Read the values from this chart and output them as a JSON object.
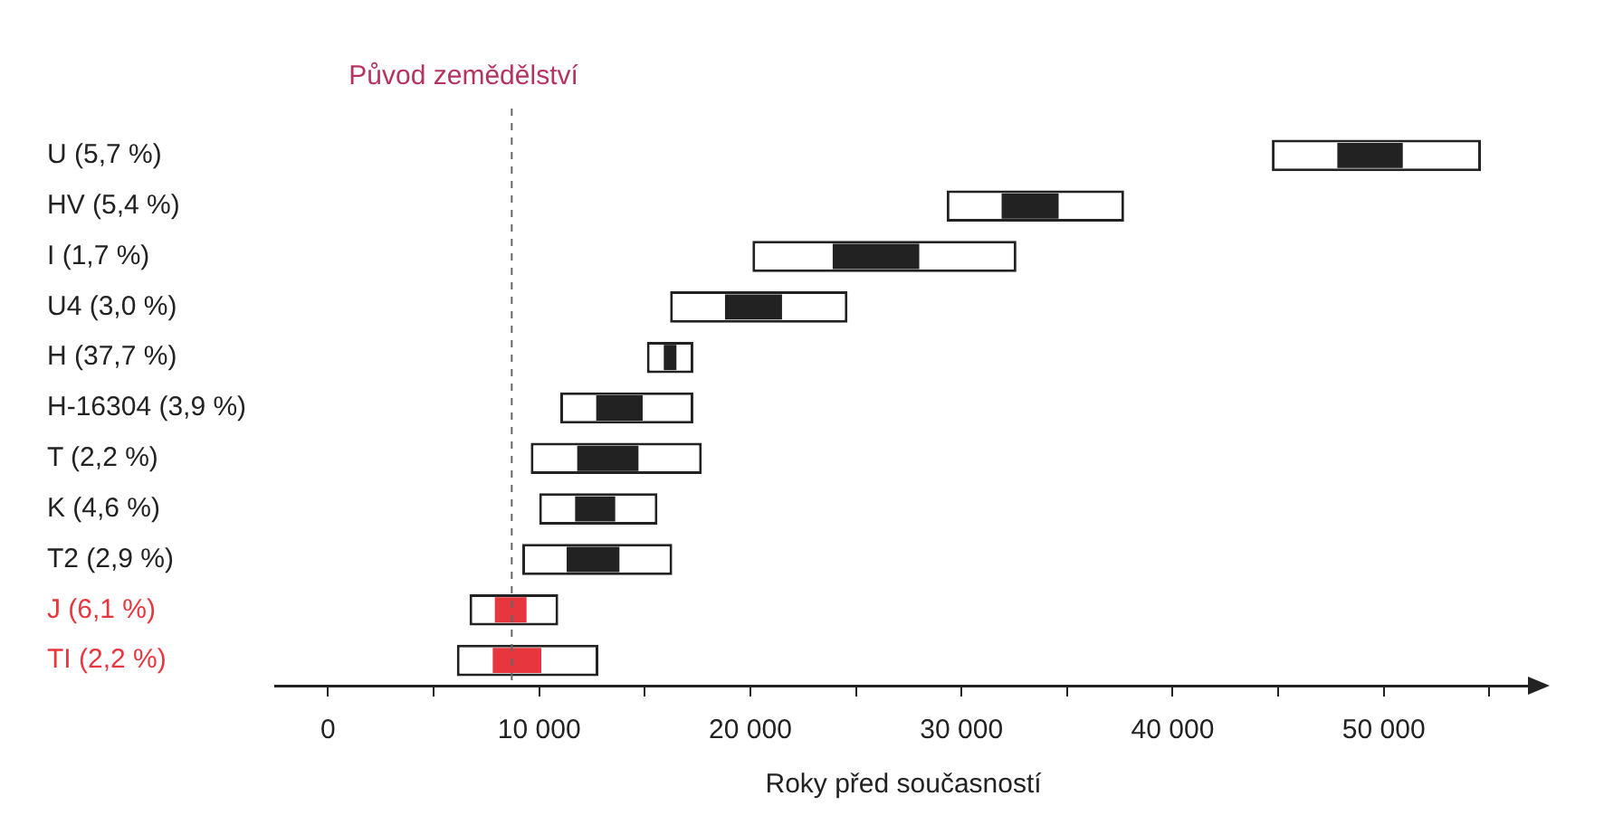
{
  "chart_data": {
    "type": "bar",
    "orientation": "horizontal",
    "xlabel": "Roky před současností",
    "categories": [
      "U (5,7 %)",
      "HV (5,4 %)",
      "I (1,7 %)",
      "U4 (3,0 %)",
      "H (37,7 %)",
      "H-16304 (3,9 %)",
      "T (2,2 %)",
      "K (4,6 %)",
      "T2 (2,9 %)",
      "J (6,1 %)",
      "TI (2,2 %)"
    ],
    "series": [
      {
        "color": "#ffffff",
        "base": [
          44700,
          29300,
          20100,
          16200,
          15100,
          11000,
          9600,
          10000,
          9200,
          6700,
          6100
        ],
        "values": [
          9900,
          8400,
          12500,
          8400,
          2200,
          6300,
          8100,
          5600,
          7100,
          4200,
          6700
        ]
      },
      {
        "colors": [
          "#222222",
          "#222222",
          "#222222",
          "#222222",
          "#222222",
          "#222222",
          "#222222",
          "#222222",
          "#222222",
          "#e8363f",
          "#e8363f"
        ],
        "base": [
          47800,
          31900,
          23900,
          18800,
          15900,
          12700,
          11800,
          11700,
          11300,
          7900,
          7800
        ],
        "values": [
          3100,
          2700,
          4100,
          2700,
          600,
          2200,
          2900,
          1900,
          2500,
          1500,
          2300
        ]
      }
    ],
    "xlim": [
      -2500,
      57000
    ],
    "xticks": [
      0,
      {
        "value": 5000,
        "label": null
      },
      {
        "value": 10000,
        "label": "10 000"
      },
      {
        "value": 15000,
        "label": null
      },
      {
        "value": 20000,
        "label": "20 000"
      },
      {
        "value": 25000,
        "label": null
      },
      {
        "value": 30000,
        "label": "30 000"
      },
      {
        "value": 35000,
        "label": null
      },
      {
        "value": 40000,
        "label": "40 000"
      },
      {
        "value": 45000,
        "label": null
      },
      {
        "value": 50000,
        "label": "50 000"
      },
      {
        "value": 55000,
        "label": null
      }
    ],
    "ref_lines": [
      {
        "axis": "x",
        "value": 8700,
        "label": "Původ zemědělství",
        "color": "#666666",
        "line_style": "dashed"
      }
    ],
    "grid": false,
    "legend": false
  }
}
